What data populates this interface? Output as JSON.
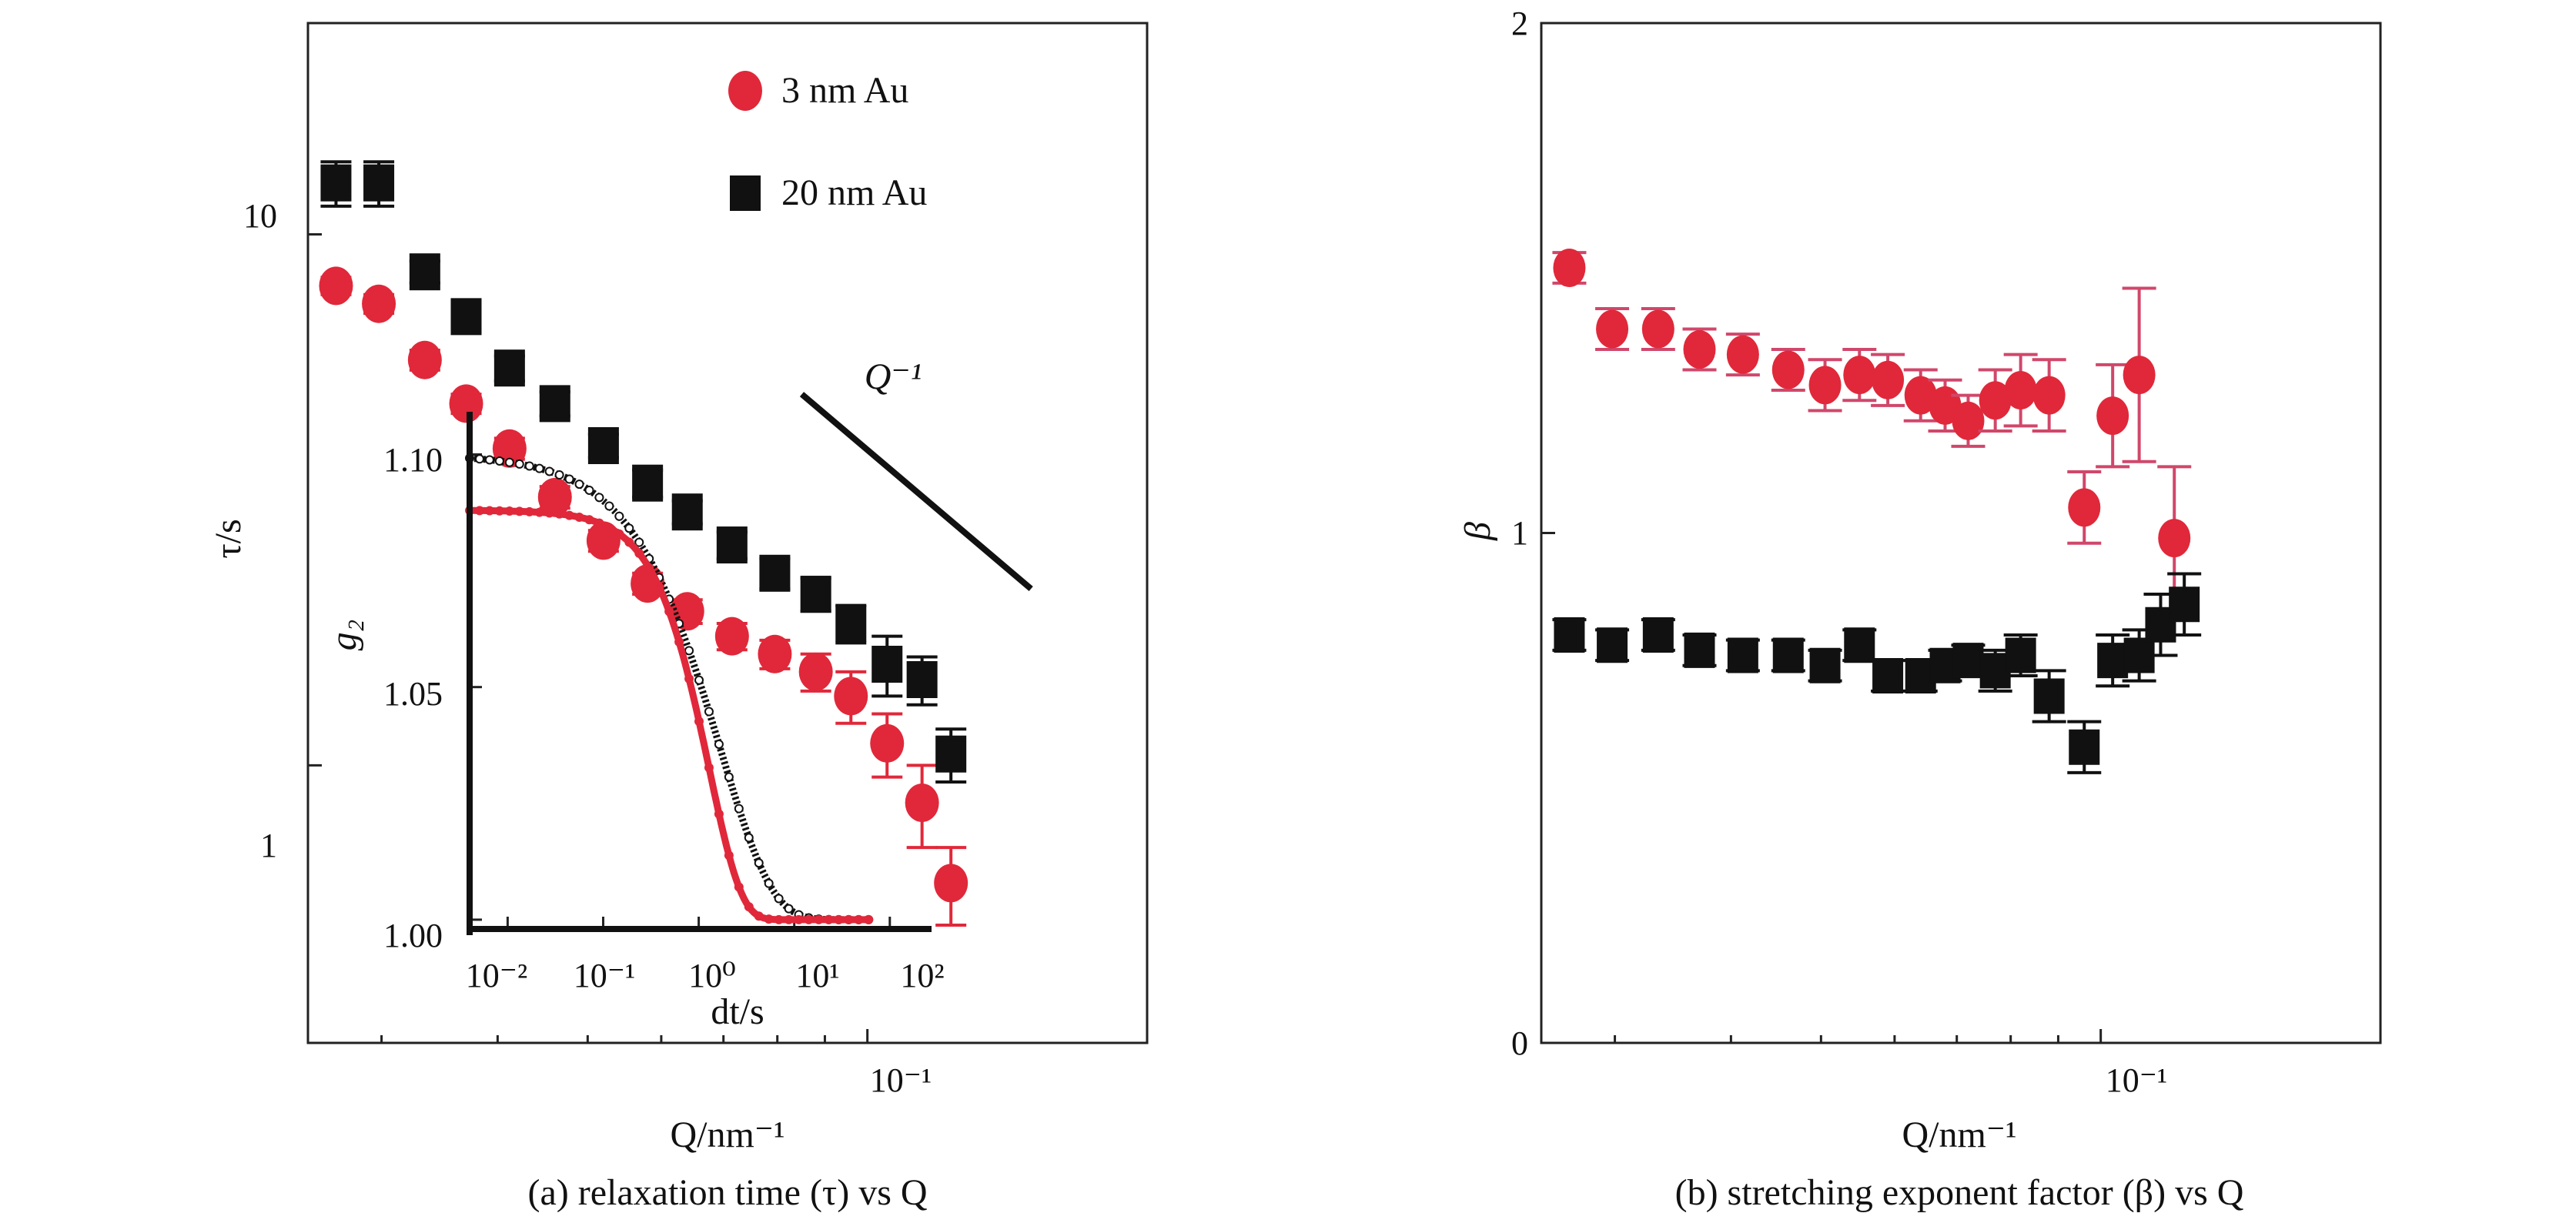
{
  "colors": {
    "red": "#e0283a",
    "black": "#111111",
    "axis": "#222222"
  },
  "chart_data": [
    {
      "type": "scatter",
      "panel": "a",
      "caption": "(a) relaxation time (τ) vs Q",
      "xlabel": "Q/nm⁻¹",
      "ylabel": "τ/s",
      "xscale": "log",
      "yscale": "log",
      "xlim": [
        0.025,
        0.2
      ],
      "ylim": [
        0.3,
        25
      ],
      "x_tick_labels": [
        "10⁻¹"
      ],
      "y_tick_labels": [
        "1",
        "10"
      ],
      "legend": {
        "position": "top-right",
        "entries": [
          "3 nm Au",
          "20 nm Au"
        ]
      },
      "annotation": {
        "text": "Q⁻¹",
        "slope_line": {
          "x": [
            0.085,
            0.15
          ],
          "y": [
            5.0,
            2.15
          ]
        }
      },
      "series": [
        {
          "name": "3 nm Au",
          "color": "red",
          "marker": "circle",
          "x": [
            0.0268,
            0.0298,
            0.0334,
            0.037,
            0.0412,
            0.0461,
            0.052,
            0.058,
            0.064,
            0.0715,
            0.0795,
            0.088,
            0.096,
            0.105,
            0.1145,
            0.123
          ],
          "y": [
            8.0,
            7.4,
            5.8,
            4.8,
            3.95,
            3.2,
            2.65,
            2.2,
            1.95,
            1.75,
            1.62,
            1.5,
            1.35,
            1.1,
            0.85,
            0.6
          ],
          "err": [
            0.3,
            0.3,
            0.25,
            0.2,
            0.18,
            0.15,
            0.12,
            0.1,
            0.1,
            0.1,
            0.1,
            0.12,
            0.15,
            0.15,
            0.15,
            0.1
          ]
        },
        {
          "name": "20 nm Au",
          "color": "black",
          "marker": "square",
          "x": [
            0.0268,
            0.0298,
            0.0334,
            0.037,
            0.0412,
            0.0461,
            0.052,
            0.058,
            0.064,
            0.0715,
            0.0795,
            0.088,
            0.096,
            0.105,
            0.1145,
            0.123
          ],
          "y": [
            12.5,
            12.5,
            8.5,
            7.0,
            5.6,
            4.8,
            4.0,
            3.4,
            3.0,
            2.6,
            2.3,
            2.1,
            1.85,
            1.55,
            1.45,
            1.05
          ],
          "err": [
            1.2,
            1.2,
            0.4,
            0.35,
            0.3,
            0.25,
            0.2,
            0.2,
            0.15,
            0.15,
            0.15,
            0.15,
            0.15,
            0.2,
            0.15,
            0.12
          ]
        }
      ]
    },
    {
      "type": "line",
      "panel": "a-inset",
      "xlabel": "dt/s",
      "ylabel": "g₂",
      "xscale": "log",
      "xlim": [
        0.004,
        300
      ],
      "ylim": [
        0.998,
        1.11
      ],
      "x_tick_labels": [
        "10⁻²",
        "10⁻¹",
        "10⁰",
        "10¹",
        "10²"
      ],
      "y_tick_labels": [
        "1.00",
        "1.05",
        "1.10"
      ],
      "series": [
        {
          "color": "black",
          "baseline": 1.0,
          "amplitude": 0.1,
          "tau": 4.0,
          "beta": 0.8,
          "x_end": 60
        },
        {
          "color": "red",
          "baseline": 1.0,
          "amplitude": 0.088,
          "tau": 2.2,
          "beta": 1.3,
          "x_end": 60
        }
      ]
    },
    {
      "type": "scatter",
      "panel": "b",
      "caption": "(b) stretching exponent factor (β) vs Q",
      "xlabel": "Q/nm⁻¹",
      "ylabel": "β",
      "xscale": "log",
      "yscale": "linear",
      "xlim": [
        0.025,
        0.2
      ],
      "ylim": [
        0,
        2
      ],
      "x_tick_labels": [
        "10⁻¹"
      ],
      "y_tick_labels": [
        "0",
        "1",
        "2"
      ],
      "series": [
        {
          "color": "red",
          "marker": "circle",
          "x": [
            0.0268,
            0.0298,
            0.0334,
            0.037,
            0.0412,
            0.0461,
            0.0505,
            0.055,
            0.059,
            0.064,
            0.068,
            0.072,
            0.077,
            0.082,
            0.088,
            0.096,
            0.103,
            0.11,
            0.12
          ],
          "y": [
            1.52,
            1.4,
            1.4,
            1.36,
            1.35,
            1.32,
            1.29,
            1.31,
            1.3,
            1.27,
            1.25,
            1.22,
            1.26,
            1.28,
            1.27,
            1.05,
            1.23,
            1.31,
            0.99
          ],
          "err": [
            0.03,
            0.04,
            0.04,
            0.04,
            0.04,
            0.04,
            0.05,
            0.05,
            0.05,
            0.05,
            0.05,
            0.05,
            0.06,
            0.07,
            0.07,
            0.07,
            0.1,
            0.17,
            0.14
          ]
        },
        {
          "color": "black",
          "marker": "square",
          "x": [
            0.0268,
            0.0298,
            0.0334,
            0.037,
            0.0412,
            0.0461,
            0.0505,
            0.055,
            0.059,
            0.064,
            0.068,
            0.072,
            0.077,
            0.082,
            0.088,
            0.096,
            0.103,
            0.11,
            0.116,
            0.123
          ],
          "y": [
            0.8,
            0.78,
            0.8,
            0.77,
            0.76,
            0.76,
            0.74,
            0.78,
            0.72,
            0.72,
            0.74,
            0.75,
            0.73,
            0.76,
            0.68,
            0.58,
            0.75,
            0.76,
            0.82,
            0.86
          ],
          "err": [
            0.03,
            0.03,
            0.03,
            0.03,
            0.03,
            0.03,
            0.03,
            0.03,
            0.03,
            0.03,
            0.03,
            0.03,
            0.04,
            0.04,
            0.05,
            0.05,
            0.05,
            0.05,
            0.06,
            0.06
          ]
        }
      ]
    }
  ]
}
